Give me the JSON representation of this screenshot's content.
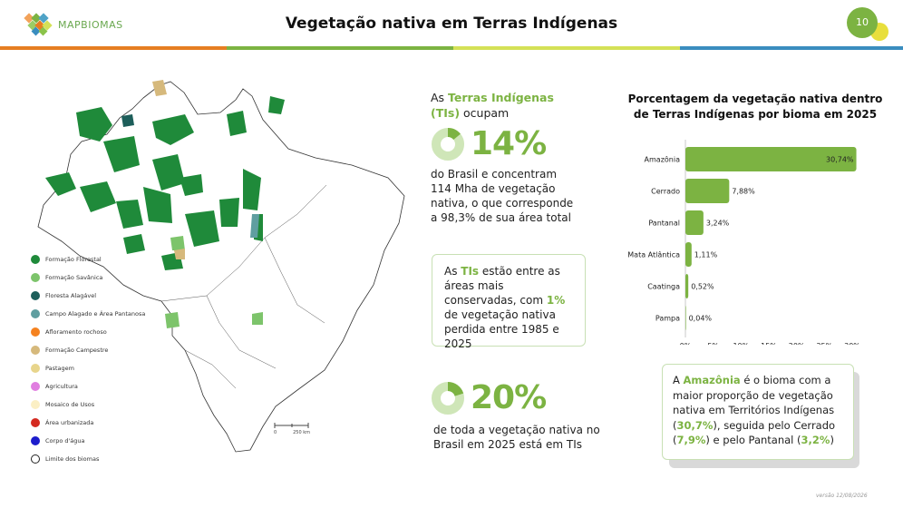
{
  "header": {
    "logo_text": "MAPBIOMAS",
    "title": "Vegetação nativa em Terras Indígenas",
    "page_number": "10"
  },
  "colors": {
    "accent_green": "#7cb342",
    "stripe": [
      "#e67e22",
      "#7cb342",
      "#d4e157",
      "#3a8dbf"
    ]
  },
  "legend": [
    {
      "label": "Formação Florestal",
      "color": "#1f8a3a"
    },
    {
      "label": "Formação Savânica",
      "color": "#7dc46b"
    },
    {
      "label": "Floresta Alagável",
      "color": "#1d5e5a"
    },
    {
      "label": "Campo Alagado e Área Pantanosa",
      "color": "#5f9ea0"
    },
    {
      "label": "Afloramento rochoso",
      "color": "#f5821f"
    },
    {
      "label": "Formação Campestre",
      "color": "#d6b97c"
    },
    {
      "label": "Pastagem",
      "color": "#e8d58c"
    },
    {
      "label": "Agricultura",
      "color": "#e07ee0"
    },
    {
      "label": "Mosaico de Usos",
      "color": "#fbefc4"
    },
    {
      "label": "Área urbanizada",
      "color": "#d42a20"
    },
    {
      "label": "Corpo d'água",
      "color": "#1c1ccc"
    },
    {
      "label": "Limite dos biomas",
      "color": "#ffffff"
    }
  ],
  "map": {
    "scale_start": "0",
    "scale_end": "250 km"
  },
  "intro": {
    "prefix": "As ",
    "highlight": "Terras Indígenas (TIs)",
    "suffix": " ocupam"
  },
  "stat1": {
    "value": "14%",
    "fraction": 0.14
  },
  "stat1_text": "do Brasil e concentram 114 Mha de vegetação nativa, o que corresponde a 98,3% de sua área total",
  "box1": {
    "p1": "As ",
    "h1": "TIs",
    "p2": " estão entre as áreas mais conservadas, com ",
    "h2": "1%",
    "p3": " de vegetação nativa perdida entre 1985 e 2025"
  },
  "stat2": {
    "value": "20%",
    "fraction": 0.2
  },
  "stat2_text": "de toda a vegetação nativa no Brasil em 2025 está em TIs",
  "chart_data": {
    "type": "bar",
    "orientation": "horizontal",
    "title": "Porcentagem da vegetação nativa dentro de Terras Indígenas por bioma em 2025",
    "categories": [
      "Amazônia",
      "Cerrado",
      "Pantanal",
      "Mata Atlântica",
      "Caatinga",
      "Pampa"
    ],
    "values": [
      30.74,
      7.88,
      3.24,
      1.11,
      0.52,
      0.04
    ],
    "value_labels": [
      "30,74%",
      "7,88%",
      "3,24%",
      "1,11%",
      "0,52%",
      "0,04%"
    ],
    "xlim": [
      0,
      30
    ],
    "xticks": [
      "0%",
      "5%",
      "10%",
      "15%",
      "20%",
      "25%",
      "30%"
    ],
    "bar_color": "#7cb342",
    "grid": false
  },
  "box2": {
    "p1": "A ",
    "h1": "Amazônia",
    "p2": " é o bioma com a maior proporção de vegetação nativa em Territórios Indígenas (",
    "h2": "30,7%",
    "p3": "), seguida pelo Cerrado (",
    "h3": "7,9%",
    "p4": ") e pelo Pantanal (",
    "h4": "3,2%",
    "p5": ")"
  },
  "version": "versão 12/08/2026"
}
